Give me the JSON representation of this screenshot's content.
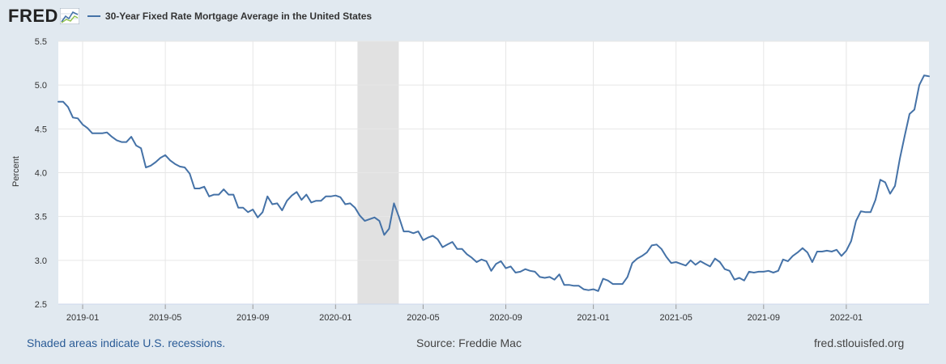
{
  "header": {
    "logo_text": "FRED",
    "series_title": "30-Year Fixed Rate Mortgage Average in the United States"
  },
  "footer": {
    "recession_note": "Shaded areas indicate U.S. recessions.",
    "source": "Source: Freddie Mac",
    "site": "fred.stlouisfed.org"
  },
  "colors": {
    "line": "#4572a7",
    "recession": "#e1e1e1",
    "grid": "#e6e6e6",
    "background": "#e1e9f0"
  },
  "chart_data": {
    "type": "line",
    "title": "30-Year Fixed Rate Mortgage Average in the United States",
    "xlabel": "",
    "ylabel": "Percent",
    "ylim": [
      2.5,
      5.5
    ],
    "yticks": [
      "2.5",
      "3.0",
      "3.5",
      "4.0",
      "4.5",
      "5.0",
      "5.5"
    ],
    "xlim_week": [
      0,
      179
    ],
    "xticks": [
      {
        "label": "2019-01",
        "week": 5
      },
      {
        "label": "2019-05",
        "week": 22
      },
      {
        "label": "2019-09",
        "week": 40
      },
      {
        "label": "2020-01",
        "week": 57
      },
      {
        "label": "2020-05",
        "week": 75
      },
      {
        "label": "2020-09",
        "week": 92
      },
      {
        "label": "2021-01",
        "week": 110
      },
      {
        "label": "2021-05",
        "week": 127
      },
      {
        "label": "2021-09",
        "week": 145
      },
      {
        "label": "2022-01",
        "week": 162
      }
    ],
    "recessions": [
      {
        "start_week": 61.5,
        "end_week": 70
      }
    ],
    "series": [
      {
        "name": "30-Year Fixed Rate Mortgage Average in the United States",
        "start_date": "2018-11-29",
        "frequency": "weekly",
        "values": [
          4.81,
          4.81,
          4.75,
          4.63,
          4.62,
          4.55,
          4.51,
          4.45,
          4.45,
          4.45,
          4.46,
          4.41,
          4.37,
          4.35,
          4.35,
          4.41,
          4.31,
          4.28,
          4.06,
          4.08,
          4.12,
          4.17,
          4.2,
          4.14,
          4.1,
          4.07,
          4.06,
          3.99,
          3.82,
          3.82,
          3.84,
          3.73,
          3.75,
          3.75,
          3.81,
          3.75,
          3.75,
          3.6,
          3.6,
          3.55,
          3.58,
          3.49,
          3.55,
          3.73,
          3.64,
          3.65,
          3.57,
          3.68,
          3.74,
          3.78,
          3.69,
          3.75,
          3.66,
          3.68,
          3.68,
          3.73,
          3.73,
          3.74,
          3.72,
          3.64,
          3.65,
          3.6,
          3.51,
          3.45,
          3.47,
          3.49,
          3.45,
          3.29,
          3.36,
          3.65,
          3.5,
          3.33,
          3.33,
          3.31,
          3.33,
          3.23,
          3.26,
          3.28,
          3.24,
          3.15,
          3.18,
          3.21,
          3.13,
          3.13,
          3.07,
          3.03,
          2.98,
          3.01,
          2.99,
          2.88,
          2.96,
          2.99,
          2.91,
          2.93,
          2.86,
          2.87,
          2.9,
          2.88,
          2.87,
          2.81,
          2.8,
          2.81,
          2.78,
          2.84,
          2.72,
          2.72,
          2.71,
          2.71,
          2.67,
          2.66,
          2.67,
          2.65,
          2.79,
          2.77,
          2.73,
          2.73,
          2.73,
          2.81,
          2.97,
          3.02,
          3.05,
          3.09,
          3.17,
          3.18,
          3.13,
          3.04,
          2.97,
          2.98,
          2.96,
          2.94,
          3.0,
          2.95,
          2.99,
          2.96,
          2.93,
          3.02,
          2.98,
          2.9,
          2.88,
          2.78,
          2.8,
          2.77,
          2.87,
          2.86,
          2.87,
          2.87,
          2.88,
          2.86,
          2.88,
          3.01,
          2.99,
          3.05,
          3.09,
          3.14,
          3.09,
          2.98,
          3.1,
          3.1,
          3.11,
          3.1,
          3.12,
          3.05,
          3.11,
          3.22,
          3.45,
          3.56,
          3.55,
          3.55,
          3.69,
          3.92,
          3.89,
          3.76,
          3.85,
          4.16,
          4.42,
          4.67,
          4.72,
          5.0,
          5.11,
          5.1
        ]
      }
    ]
  }
}
